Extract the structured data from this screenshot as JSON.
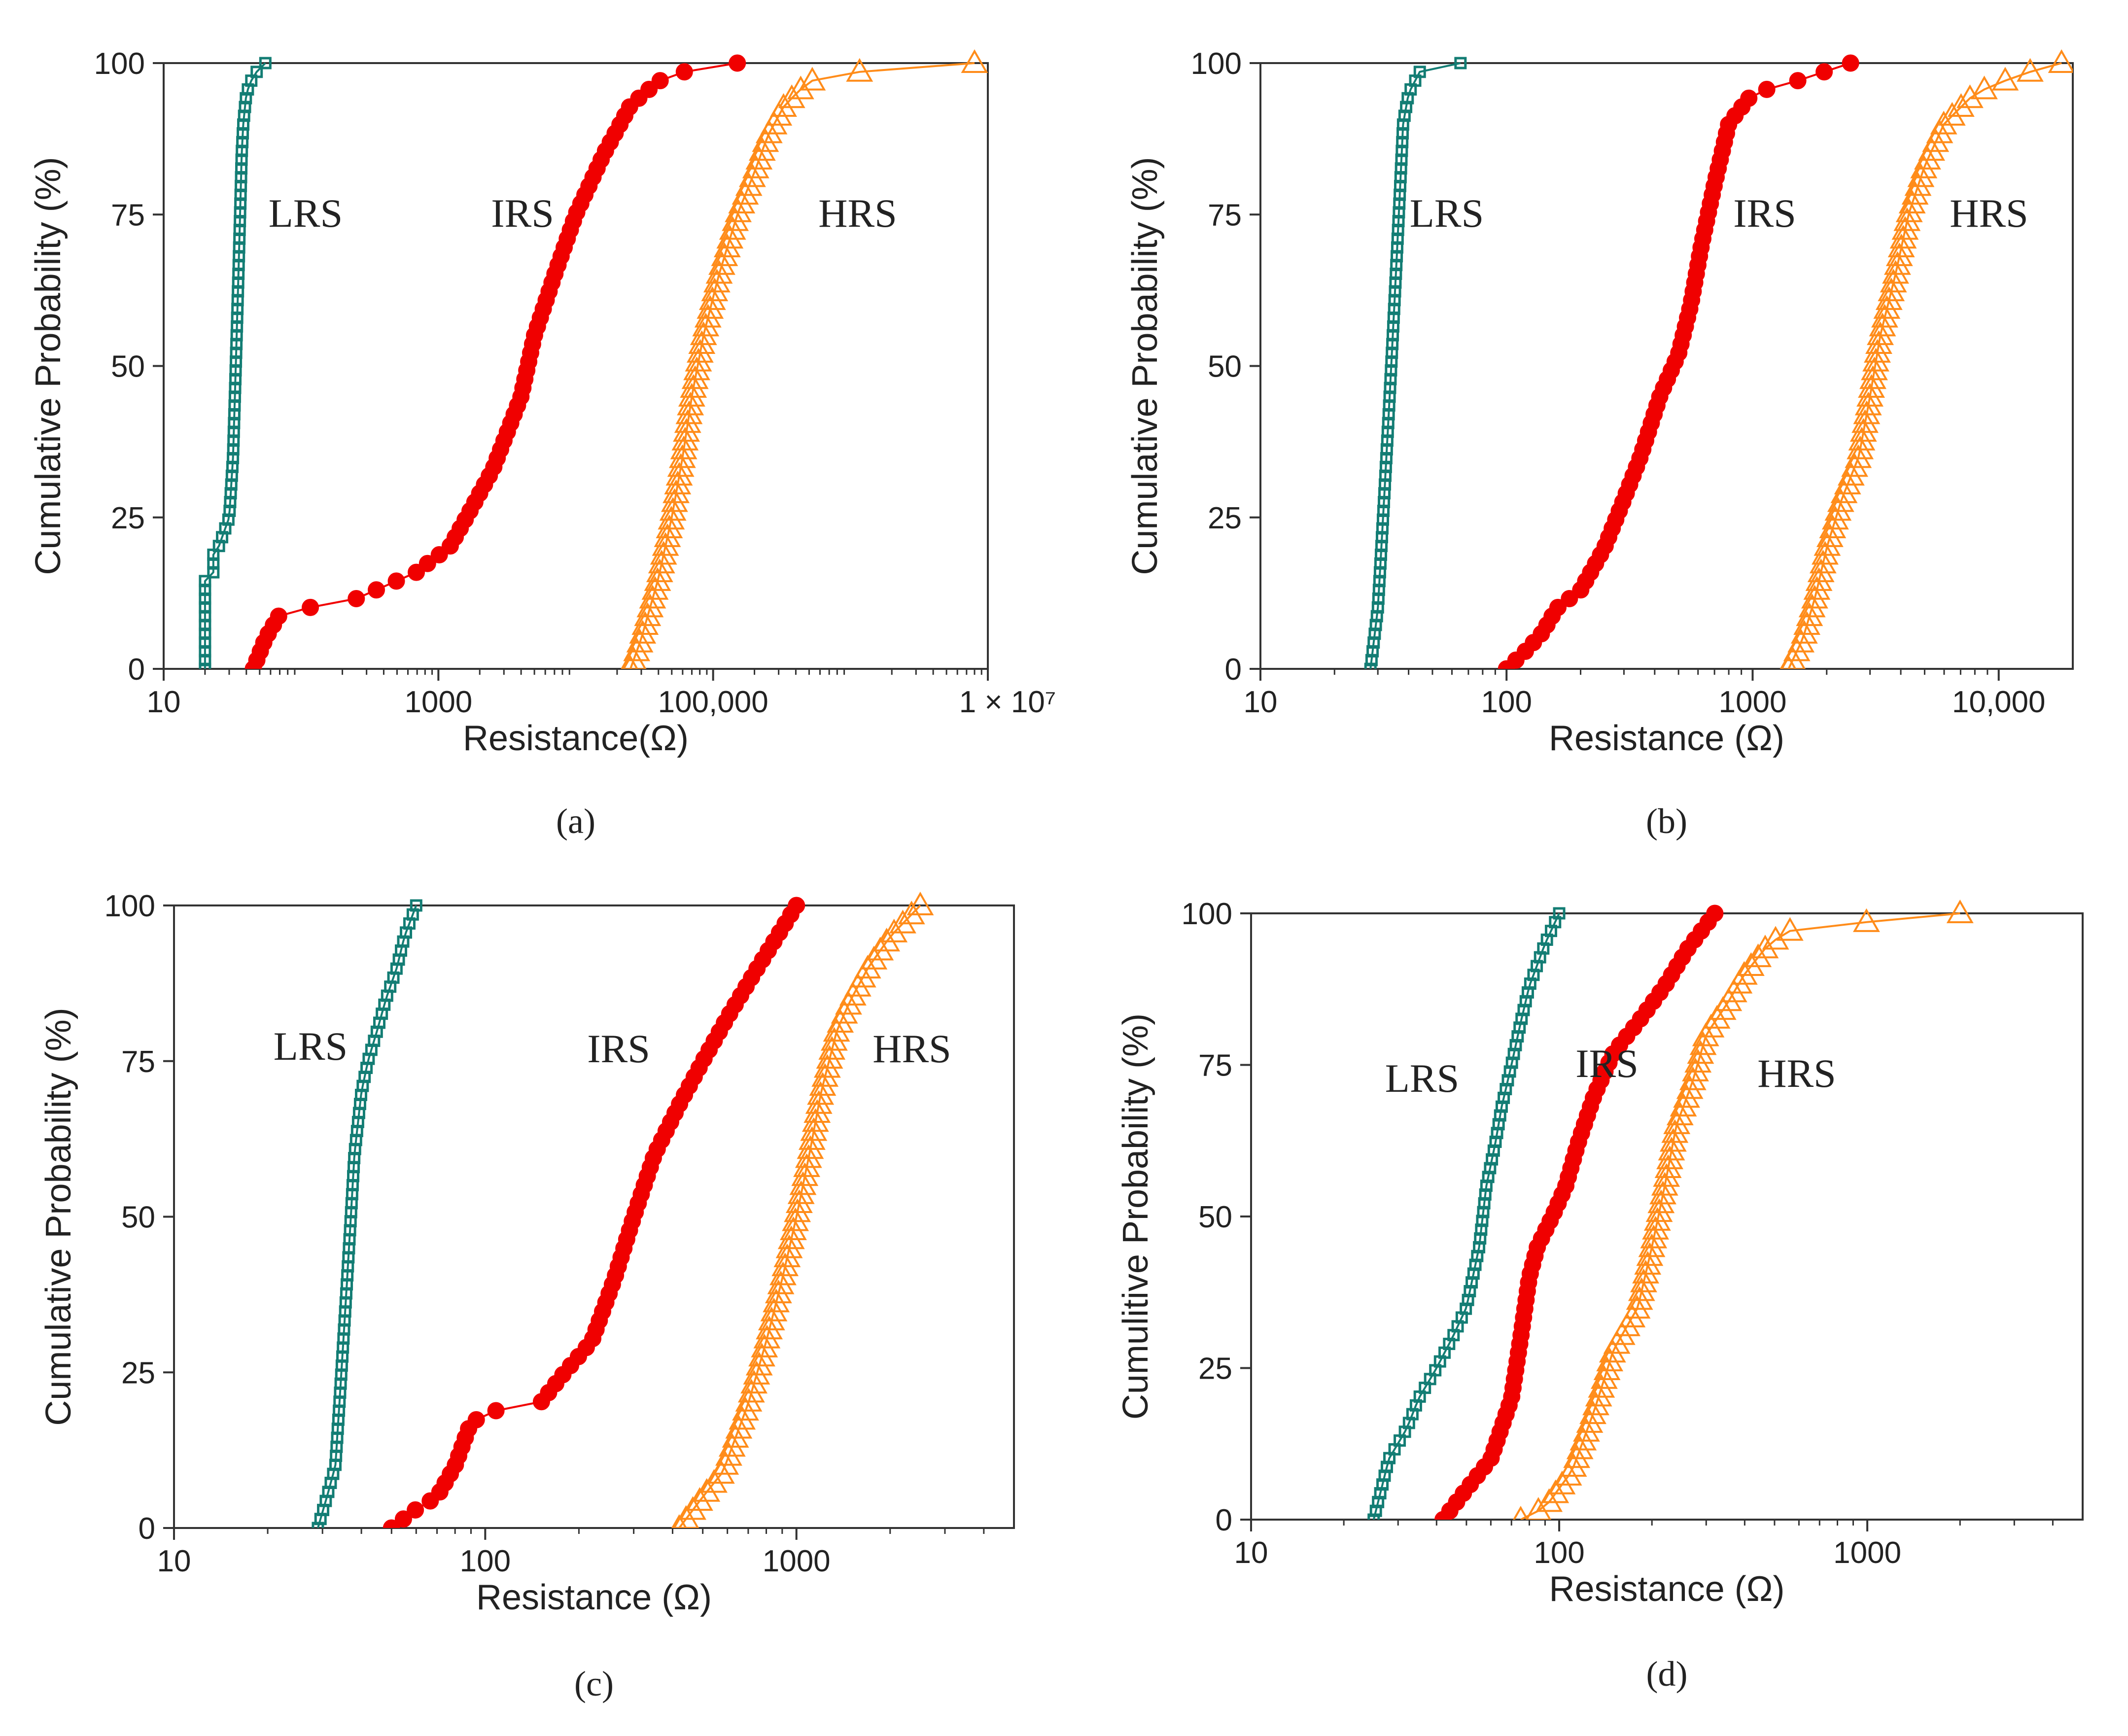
{
  "colors": {
    "LRS": "#137d74",
    "IRS": "#f00000",
    "HRS": "#ff8c1a",
    "axis": "#333333"
  },
  "chart_data": [
    {
      "type": "line",
      "panel_label": "(a)",
      "xlabel": "Resistance(Ω)",
      "ylabel": "Cumulative Probability (%)",
      "xscale": "log",
      "xlim": [
        10,
        10000000
      ],
      "ylim": [
        0,
        100
      ],
      "xticks": [
        10,
        1000,
        100000,
        10000000
      ],
      "xtick_labels": [
        "10",
        "1000",
        "100,000",
        "1 × 10⁷"
      ],
      "yticks": [
        0,
        25,
        50,
        75,
        100
      ],
      "ytick_labels": [
        "0",
        "25",
        "50",
        "75",
        "100"
      ],
      "annotations": [
        "LRS",
        "IRS",
        "HRS"
      ],
      "series": [
        {
          "name": "LRS",
          "marker": "square",
          "x": [
            20,
            20,
            23,
            23,
            25,
            30,
            32,
            33,
            34,
            35,
            36,
            37,
            38,
            40,
            45,
            55
          ],
          "y": [
            0,
            15,
            15,
            20,
            20,
            25,
            35,
            45,
            55,
            65,
            75,
            85,
            90,
            95,
            98,
            100
          ]
        },
        {
          "name": "IRS",
          "marker": "circle",
          "x": [
            45,
            55,
            70,
            105,
            220,
            350,
            700,
            900,
            1200,
            1600,
            2500,
            4000,
            5000,
            7000,
            10000,
            16000,
            25000,
            40000,
            70000,
            150000
          ],
          "y": [
            0,
            5,
            9,
            10,
            11,
            13,
            16,
            18,
            20,
            25,
            33,
            45,
            55,
            65,
            75,
            85,
            93,
            97,
            99,
            100
          ]
        },
        {
          "name": "HRS",
          "marker": "triangle",
          "x": [
            25000,
            30000,
            40000,
            50000,
            60000,
            70000,
            85000,
            110000,
            150000,
            200000,
            250000,
            330000,
            450000,
            600000,
            2000000,
            8000000
          ],
          "y": [
            0,
            5,
            15,
            25,
            35,
            45,
            55,
            65,
            75,
            82,
            88,
            93,
            96,
            98,
            99,
            100
          ]
        }
      ]
    },
    {
      "type": "line",
      "panel_label": "(b)",
      "xlabel": "Resistance (Ω)",
      "ylabel": "Cumulative Probability (%)",
      "xscale": "log",
      "xlim": [
        10,
        20000
      ],
      "ylim": [
        0,
        100
      ],
      "xticks": [
        10,
        100,
        1000,
        10000
      ],
      "xtick_labels": [
        "10",
        "100",
        "1000",
        "10,000"
      ],
      "yticks": [
        0,
        25,
        50,
        75,
        100
      ],
      "ytick_labels": [
        "0",
        "25",
        "50",
        "75",
        "100"
      ],
      "annotations": [
        "LRS",
        "IRS",
        "HRS"
      ],
      "series": [
        {
          "name": "LRS",
          "marker": "square",
          "x": [
            28,
            30,
            31,
            32,
            33,
            34,
            35,
            36,
            37,
            38,
            40,
            45,
            65
          ],
          "y": [
            0,
            10,
            20,
            30,
            40,
            50,
            60,
            70,
            80,
            90,
            95,
            99,
            100
          ]
        },
        {
          "name": "IRS",
          "marker": "circle",
          "x": [
            100,
            120,
            140,
            160,
            200,
            250,
            300,
            350,
            420,
            500,
            560,
            620,
            700,
            800,
            1000,
            1500,
            2500
          ],
          "y": [
            0,
            3,
            6,
            10,
            13,
            20,
            28,
            35,
            45,
            52,
            60,
            70,
            80,
            90,
            95,
            97,
            100
          ]
        },
        {
          "name": "HRS",
          "marker": "triangle",
          "x": [
            1400,
            1600,
            1800,
            2000,
            2300,
            2700,
            3000,
            3300,
            3800,
            4300,
            5000,
            6000,
            8000,
            12000,
            18000
          ],
          "y": [
            0,
            5,
            12,
            20,
            28,
            35,
            45,
            55,
            65,
            75,
            83,
            90,
            95,
            98,
            100
          ]
        }
      ]
    },
    {
      "type": "line",
      "panel_label": "(c)",
      "xlabel": "Resistance (Ω)",
      "ylabel": "Cumulative Probability (%)",
      "xscale": "log",
      "xlim": [
        10,
        5000
      ],
      "ylim": [
        0,
        100
      ],
      "xticks": [
        10,
        100,
        1000
      ],
      "xtick_labels": [
        "10",
        "100",
        "1000"
      ],
      "yticks": [
        0,
        25,
        50,
        75,
        100
      ],
      "ytick_labels": [
        "0",
        "25",
        "50",
        "75",
        "100"
      ],
      "annotations": [
        "LRS",
        "IRS",
        "HRS"
      ],
      "series": [
        {
          "name": "LRS",
          "marker": "square",
          "x": [
            29,
            31,
            33,
            34,
            35,
            36,
            37,
            38,
            40,
            42,
            45,
            48,
            52,
            55,
            60
          ],
          "y": [
            0,
            5,
            10,
            20,
            30,
            40,
            50,
            60,
            70,
            75,
            80,
            85,
            90,
            95,
            100
          ]
        },
        {
          "name": "IRS",
          "marker": "circle",
          "x": [
            50,
            60,
            70,
            80,
            90,
            110,
            150,
            180,
            220,
            260,
            300,
            350,
            420,
            500,
            600,
            750,
            1000
          ],
          "y": [
            0,
            3,
            5,
            10,
            17,
            19,
            20,
            25,
            30,
            40,
            50,
            60,
            68,
            75,
            82,
            90,
            100
          ]
        },
        {
          "name": "HRS",
          "marker": "triangle",
          "x": [
            420,
            500,
            580,
            700,
            800,
            900,
            1000,
            1100,
            1200,
            1350,
            1500,
            1700,
            2000,
            2500
          ],
          "y": [
            0,
            5,
            9,
            20,
            30,
            40,
            50,
            60,
            70,
            80,
            85,
            90,
            95,
            100
          ]
        }
      ]
    },
    {
      "type": "line",
      "panel_label": "(d)",
      "xlabel": "Resistance (Ω)",
      "ylabel": "Cumulitive Probability (%)",
      "xscale": "log",
      "xlim": [
        10,
        5000
      ],
      "ylim": [
        0,
        100
      ],
      "xticks": [
        10,
        100,
        1000
      ],
      "xtick_labels": [
        "10",
        "100",
        "1000"
      ],
      "yticks": [
        0,
        25,
        50,
        75,
        100
      ],
      "ytick_labels": [
        "0",
        "25",
        "50",
        "75",
        "100"
      ],
      "annotations": [
        "LRS",
        "IRS",
        "HRS"
      ],
      "series": [
        {
          "name": "LRS",
          "marker": "square",
          "x": [
            25,
            28,
            32,
            35,
            40,
            45,
            50,
            55,
            58,
            62,
            65,
            70,
            75,
            80,
            90,
            100
          ],
          "y": [
            0,
            10,
            15,
            20,
            25,
            30,
            35,
            45,
            55,
            62,
            68,
            75,
            82,
            88,
            95,
            100
          ]
        },
        {
          "name": "IRS",
          "marker": "circle",
          "x": [
            42,
            50,
            60,
            70,
            75,
            80,
            85,
            95,
            105,
            115,
            130,
            150,
            180,
            220,
            260,
            320
          ],
          "y": [
            0,
            5,
            10,
            20,
            30,
            40,
            45,
            50,
            55,
            62,
            70,
            77,
            82,
            88,
            94,
            100
          ]
        },
        {
          "name": "HRS",
          "marker": "triangle",
          "x": [
            75,
            90,
            110,
            130,
            150,
            180,
            200,
            220,
            240,
            270,
            300,
            350,
            400,
            480,
            600,
            1500,
            2000
          ],
          "y": [
            0,
            2,
            8,
            18,
            28,
            35,
            45,
            55,
            65,
            72,
            80,
            85,
            90,
            95,
            98,
            99,
            100
          ]
        }
      ]
    }
  ]
}
